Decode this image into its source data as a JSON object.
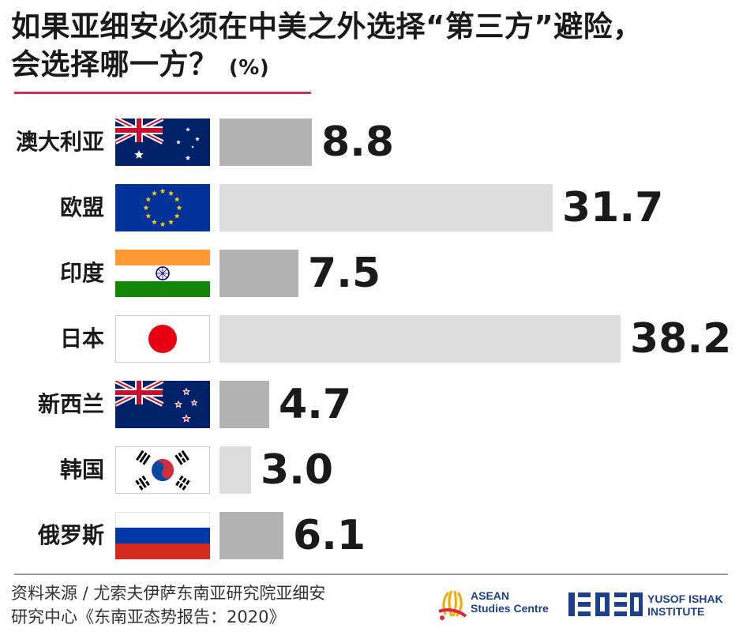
{
  "title": {
    "line1": "如果亚细安必须在中美之外选择“第三方”避险，",
    "line2": "会选择哪一方？",
    "unit": "(%)"
  },
  "chart_data": {
    "type": "bar",
    "orientation": "horizontal",
    "categories": [
      "澳大利亚",
      "欧盟",
      "印度",
      "日本",
      "新西兰",
      "韩国",
      "俄罗斯"
    ],
    "values": [
      8.8,
      31.7,
      7.5,
      38.2,
      4.7,
      3.0,
      6.1
    ],
    "value_labels": [
      "8.8",
      "31.7",
      "7.5",
      "38.2",
      "4.7",
      "3.0",
      "6.1"
    ],
    "bar_shades": [
      "dark",
      "light",
      "dark",
      "light",
      "dark",
      "light",
      "dark"
    ],
    "flags": [
      "australia-flag",
      "eu-flag",
      "india-flag",
      "japan-flag",
      "new-zealand-flag",
      "south-korea-flag",
      "russia-flag"
    ],
    "unit": "%",
    "xlim": [
      0,
      38.2
    ],
    "colors": {
      "dark": "#b3b3b3",
      "light": "#dddddd",
      "accent": "#c2345a"
    }
  },
  "footer": {
    "source_line1": "资料来源 / 尤索夫伊萨东南亚研究院亚细安",
    "source_line2": "研究中心《东南亚态势报告：2020》",
    "asean_logo_line1": "ASEAN",
    "asean_logo_line2": "Studies Centre",
    "iseas_logo_line1": "YUSOF ISHAK",
    "iseas_logo_line2": "INSTITUTE"
  }
}
